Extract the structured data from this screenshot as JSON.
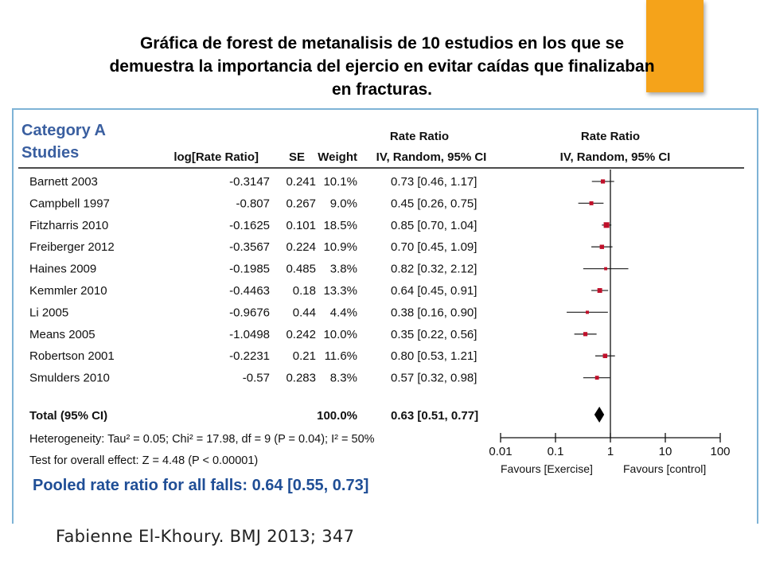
{
  "slide": {
    "title_line1": "Gráfica de forest  de metanalisis de 10 estudios en los que se",
    "title_line2": "demuestra la importancia del ejercio en evitar caídas que finalizaban",
    "title_line3": "en fracturas.",
    "footer": "Fabienne El-Khoury. BMJ 2013; 347",
    "accent_color": "#f5a31a",
    "panel_border_color": "#7eb3d6"
  },
  "chart_data": {
    "type": "forest",
    "category": "Category A",
    "studies_label": "Studies",
    "columns": {
      "log_rr": "log[Rate Ratio]",
      "se": "SE",
      "weight": "Weight",
      "rr_group": "Rate Ratio",
      "rr_method": "IV, Random, 95% CI",
      "plot_group": "Rate Ratio",
      "plot_method": "IV, Random, 95% CI"
    },
    "studies": [
      {
        "name": "Barnett 2003",
        "log_rr": "-0.3147",
        "se": "0.241",
        "weight": "10.1%",
        "ci_text": "0.73 [0.46, 1.17]",
        "rr": 0.73,
        "lower": 0.46,
        "upper": 1.17,
        "weight_value": 10.1
      },
      {
        "name": "Campbell 1997",
        "log_rr": "-0.807",
        "se": "0.267",
        "weight": "9.0%",
        "ci_text": "0.45 [0.26, 0.75]",
        "rr": 0.45,
        "lower": 0.26,
        "upper": 0.75,
        "weight_value": 9.0
      },
      {
        "name": "Fitzharris 2010",
        "log_rr": "-0.1625",
        "se": "0.101",
        "weight": "18.5%",
        "ci_text": "0.85 [0.70, 1.04]",
        "rr": 0.85,
        "lower": 0.7,
        "upper": 1.04,
        "weight_value": 18.5
      },
      {
        "name": "Freiberger 2012",
        "log_rr": "-0.3567",
        "se": "0.224",
        "weight": "10.9%",
        "ci_text": "0.70 [0.45, 1.09]",
        "rr": 0.7,
        "lower": 0.45,
        "upper": 1.09,
        "weight_value": 10.9
      },
      {
        "name": "Haines 2009",
        "log_rr": "-0.1985",
        "se": "0.485",
        "weight": "3.8%",
        "ci_text": "0.82 [0.32, 2.12]",
        "rr": 0.82,
        "lower": 0.32,
        "upper": 2.12,
        "weight_value": 3.8
      },
      {
        "name": "Kemmler 2010",
        "log_rr": "-0.4463",
        "se": "0.18",
        "weight": "13.3%",
        "ci_text": "0.64 [0.45, 0.91]",
        "rr": 0.64,
        "lower": 0.45,
        "upper": 0.91,
        "weight_value": 13.3
      },
      {
        "name": "Li 2005",
        "log_rr": "-0.9676",
        "se": "0.44",
        "weight": "4.4%",
        "ci_text": "0.38 [0.16, 0.90]",
        "rr": 0.38,
        "lower": 0.16,
        "upper": 0.9,
        "weight_value": 4.4
      },
      {
        "name": "Means 2005",
        "log_rr": "-1.0498",
        "se": "0.242",
        "weight": "10.0%",
        "ci_text": "0.35 [0.22, 0.56]",
        "rr": 0.35,
        "lower": 0.22,
        "upper": 0.56,
        "weight_value": 10.0
      },
      {
        "name": "Robertson 2001",
        "log_rr": "-0.2231",
        "se": "0.21",
        "weight": "11.6%",
        "ci_text": "0.80 [0.53, 1.21]",
        "rr": 0.8,
        "lower": 0.53,
        "upper": 1.21,
        "weight_value": 11.6
      },
      {
        "name": "Smulders 2010",
        "log_rr": "-0.57",
        "se": "0.283",
        "weight": "8.3%",
        "ci_text": "0.57 [0.32, 0.98]",
        "rr": 0.57,
        "lower": 0.32,
        "upper": 0.98,
        "weight_value": 8.3
      }
    ],
    "total": {
      "label": "Total (95% CI)",
      "weight": "100.0%",
      "ci_text": "0.63 [0.51, 0.77]",
      "rr": 0.63,
      "lower": 0.51,
      "upper": 0.77
    },
    "heterogeneity": "Heterogeneity: Tau² = 0.05; Chi² = 17.98, df = 9 (P = 0.04); I² = 50%",
    "overall_effect": "Test for overall effect: Z = 4.48 (P < 0.00001)",
    "pooled": "Pooled rate ratio for all falls: 0.64 [0.55, 0.73]",
    "axis": {
      "scale": "log",
      "range": [
        0.01,
        100
      ],
      "ticks": [
        0.01,
        0.1,
        1,
        10,
        100
      ],
      "tick_labels": [
        "0.01",
        "0.1",
        "1",
        "10",
        "100"
      ],
      "reference_line": 1,
      "favours_left": "Favours [Exercise]",
      "favours_right": "Favours [control]"
    },
    "colors": {
      "header_blue": "#3a5fa0",
      "marker": "#c0102a",
      "pooled_blue": "#1f4e96",
      "text": "#111111"
    }
  }
}
